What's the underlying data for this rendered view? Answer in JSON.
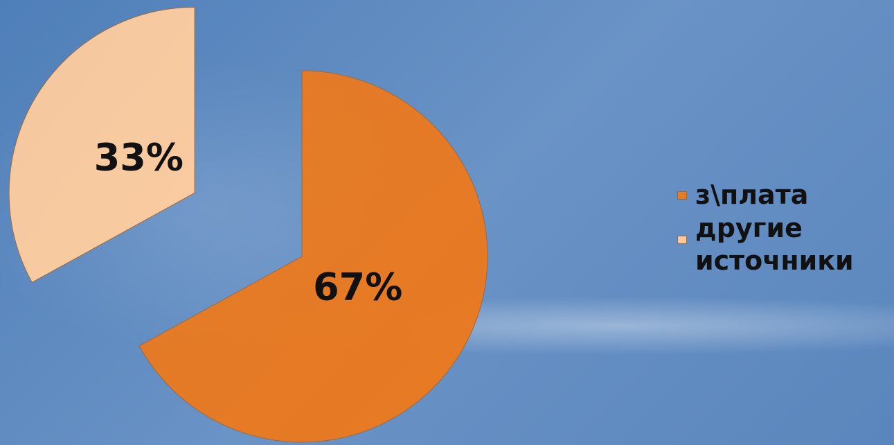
{
  "chart_data": {
    "type": "pie",
    "categories": [
      "з\\плата",
      "другие источники"
    ],
    "values": [
      67,
      33
    ],
    "value_labels": [
      "67%",
      "33%"
    ],
    "colors": [
      "#e87a22",
      "#fbcb9f"
    ]
  }
}
